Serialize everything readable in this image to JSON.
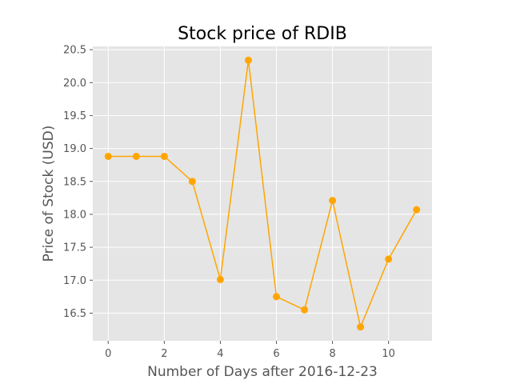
{
  "chart_data": {
    "type": "line",
    "title": "Stock price of RDIB",
    "xlabel": "Number of Days after 2016-12-23",
    "ylabel": "Price of Stock (USD)",
    "x": [
      0,
      1,
      2,
      3,
      4,
      5,
      6,
      7,
      8,
      9,
      10,
      11
    ],
    "series": [
      {
        "values": [
          18.88,
          18.88,
          18.88,
          18.5,
          17.01,
          20.34,
          16.75,
          16.55,
          18.21,
          16.29,
          17.32,
          18.07
        ],
        "color": "#FFA500",
        "marker": "circle"
      }
    ],
    "xlim": [
      -0.55,
      11.55
    ],
    "ylim": [
      16.08,
      20.55
    ],
    "xticks": [
      0,
      2,
      4,
      6,
      8,
      10
    ],
    "xtick_labels": [
      "0",
      "2",
      "4",
      "6",
      "8",
      "10"
    ],
    "yticks": [
      16.5,
      17.0,
      17.5,
      18.0,
      18.5,
      19.0,
      19.5,
      20.0,
      20.5
    ],
    "ytick_labels": [
      "16.5",
      "17.0",
      "17.5",
      "18.0",
      "18.5",
      "19.0",
      "19.5",
      "20.0",
      "20.5"
    ],
    "grid": true,
    "style": "ggplot",
    "background_color": "#E5E5E5",
    "grid_color": "#FFFFFF"
  }
}
